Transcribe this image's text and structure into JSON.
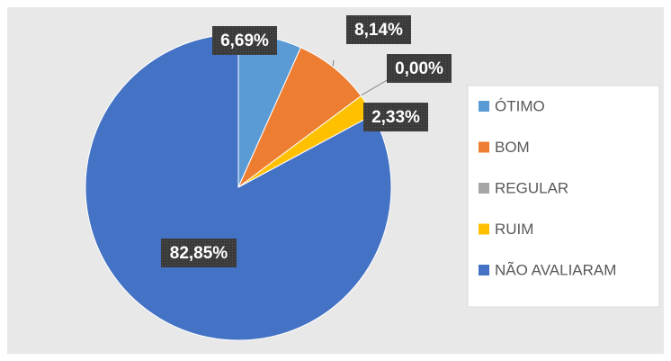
{
  "chart_data": {
    "type": "pie",
    "categories": [
      "ÓTIMO",
      "BOM",
      "REGULAR",
      "RUIM",
      "NÃO AVALIARAM"
    ],
    "values": [
      6.69,
      8.14,
      0.0,
      2.33,
      82.85
    ],
    "value_labels": [
      "6,69%",
      "8,14%",
      "0,00%",
      "2,33%",
      "82,85%"
    ],
    "colors": [
      "#5b9bd5",
      "#ed7d31",
      "#a5a5a5",
      "#ffc000",
      "#4472c4"
    ],
    "legend": "right"
  }
}
